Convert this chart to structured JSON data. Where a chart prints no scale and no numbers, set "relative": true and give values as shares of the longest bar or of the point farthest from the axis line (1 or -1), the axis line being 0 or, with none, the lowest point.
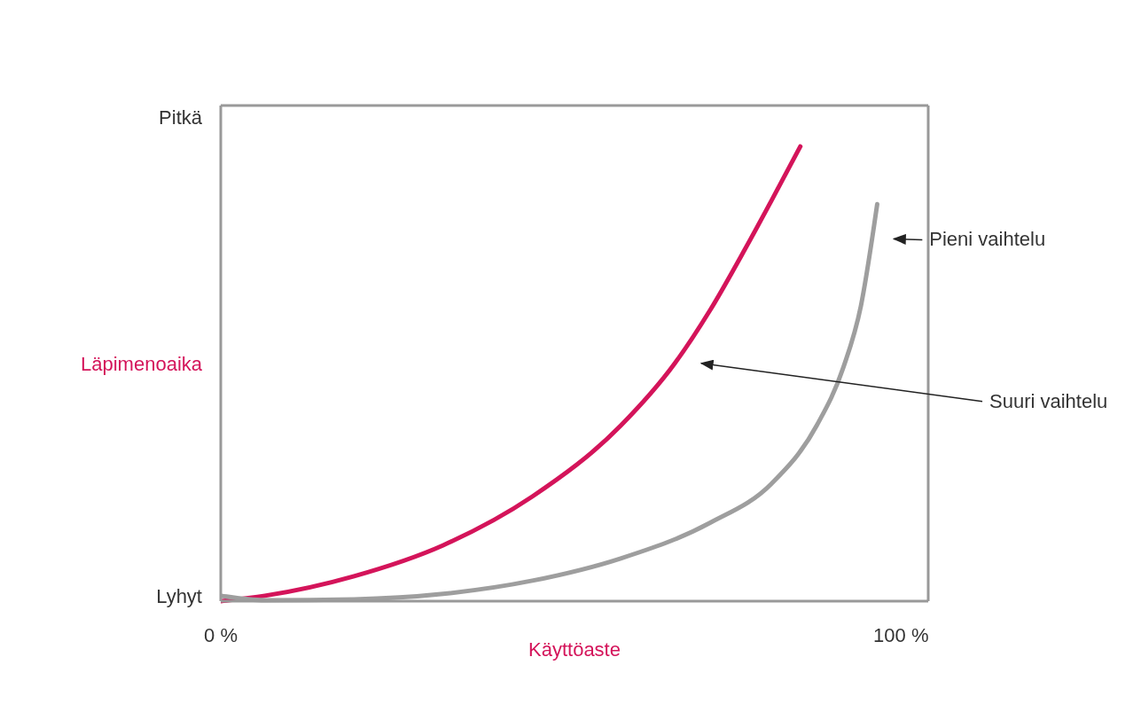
{
  "chart_data": {
    "type": "line",
    "relative": true,
    "xlabel": "Käyttöaste",
    "ylabel": "Läpimenoaika",
    "xlim": [
      0,
      104
    ],
    "xticks": [
      {
        "value": 0,
        "label": "0 %"
      },
      {
        "value": 100,
        "label": "100 %"
      }
    ],
    "grid": false,
    "legend": false,
    "marker": "none",
    "line_style": "solid",
    "annotations": [
      "Pitkä",
      "Lyhyt"
    ],
    "series": [
      {
        "name": "Suuri vaihtelu",
        "color": "#d4145a",
        "x": [
          0,
          6.5,
          19.6,
          32.7,
          45.8,
          58.8,
          66.7,
          71.9,
          77.1,
          81.0,
          85.2
        ],
        "values": [
          0,
          0.012,
          0.055,
          0.123,
          0.23,
          0.386,
          0.522,
          0.639,
          0.775,
          0.882,
          1
        ]
      },
      {
        "name": "Pieni vaihtelu",
        "color": "#9e9e9e",
        "x": [
          0,
          6.5,
          19.6,
          32.7,
          45.8,
          58.8,
          71.9,
          81.0,
          87.6,
          91.5,
          94.1,
          96.5
        ],
        "values": [
          0.012,
          0.002,
          0.004,
          0.016,
          0.045,
          0.094,
          0.172,
          0.259,
          0.386,
          0.513,
          0.649,
          0.873
        ]
      }
    ]
  }
}
